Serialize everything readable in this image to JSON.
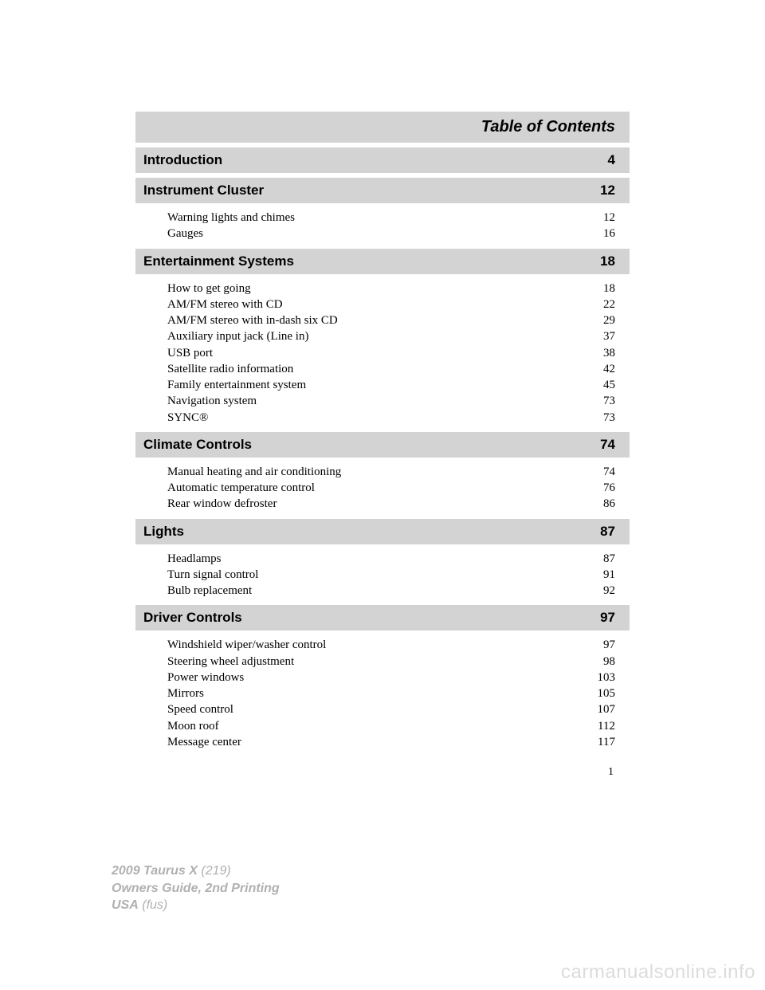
{
  "title": "Table of Contents",
  "sections": [
    {
      "name": "Introduction",
      "page": "4",
      "items": []
    },
    {
      "name": "Instrument Cluster",
      "page": "12",
      "items": [
        {
          "label": "Warning lights and chimes",
          "page": "12"
        },
        {
          "label": "Gauges",
          "page": "16"
        }
      ]
    },
    {
      "name": "Entertainment Systems",
      "page": "18",
      "items": [
        {
          "label": "How to get going",
          "page": "18"
        },
        {
          "label": "AM/FM stereo with CD",
          "page": "22"
        },
        {
          "label": "AM/FM stereo with in-dash six CD",
          "page": "29"
        },
        {
          "label": "Auxiliary input jack (Line in)",
          "page": "37"
        },
        {
          "label": "USB port",
          "page": "38"
        },
        {
          "label": "Satellite radio information",
          "page": "42"
        },
        {
          "label": "Family entertainment system",
          "page": "45"
        },
        {
          "label": "Navigation system",
          "page": "73"
        },
        {
          "label": "SYNC®",
          "page": "73"
        }
      ]
    },
    {
      "name": "Climate Controls",
      "page": "74",
      "items": [
        {
          "label": "Manual heating and air conditioning",
          "page": "74"
        },
        {
          "label": "Automatic temperature control",
          "page": "76"
        },
        {
          "label": "Rear window defroster",
          "page": "86"
        }
      ]
    },
    {
      "name": "Lights",
      "page": "87",
      "items": [
        {
          "label": "Headlamps",
          "page": "87"
        },
        {
          "label": "Turn signal control",
          "page": "91"
        },
        {
          "label": "Bulb replacement",
          "page": "92"
        }
      ]
    },
    {
      "name": "Driver Controls",
      "page": "97",
      "items": [
        {
          "label": "Windshield wiper/washer control",
          "page": "97"
        },
        {
          "label": "Steering wheel adjustment",
          "page": "98"
        },
        {
          "label": "Power windows",
          "page": "103"
        },
        {
          "label": "Mirrors",
          "page": "105"
        },
        {
          "label": "Speed control",
          "page": "107"
        },
        {
          "label": "Moon roof",
          "page": "112"
        },
        {
          "label": "Message center",
          "page": "117"
        }
      ]
    }
  ],
  "page_number": "1",
  "footer": {
    "line1a": "2009 Taurus X",
    "line1b": "(219)",
    "line2": "Owners Guide, 2nd Printing",
    "line3a": "USA",
    "line3b": "(fus)"
  },
  "watermark": "carmanualsonline.info",
  "colors": {
    "section_bg": "#d3d3d3",
    "footer_text": "#b0b0b0",
    "watermark": "#dcdcdc",
    "text": "#000000",
    "page_bg": "#ffffff"
  }
}
